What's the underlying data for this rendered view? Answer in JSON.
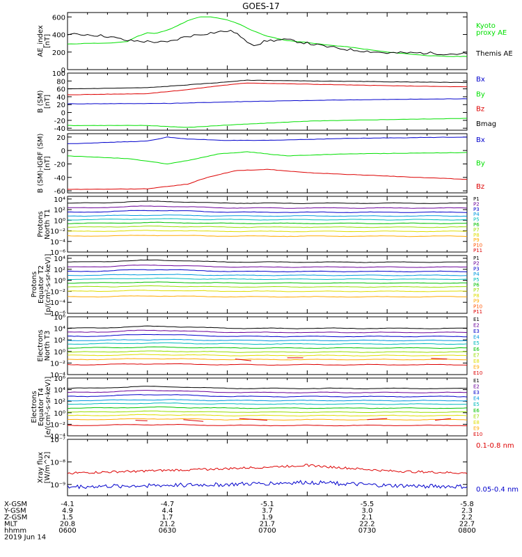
{
  "chart_data": {
    "type": "line",
    "title": "GOES-17",
    "panels": [
      {
        "id": "ae",
        "ylabel": [
          "AE_index",
          "[nT]"
        ],
        "yscale": "linear",
        "ylim": [
          0,
          650
        ],
        "ticks": [
          0,
          200,
          400,
          600
        ],
        "legend": [
          {
            "text": "Kyoto",
            "color": "#00e000"
          },
          {
            "text": "proxy AE",
            "color": "#00e000"
          },
          {
            "text": "Themis AE",
            "color": "#000000"
          }
        ],
        "series": [
          {
            "name": "Kyoto proxy AE",
            "color": "#00e000",
            "x": [
              0,
              0.05,
              0.1,
              0.15,
              0.17,
              0.2,
              0.22,
              0.25,
              0.28,
              0.3,
              0.33,
              0.36,
              0.4,
              0.43,
              0.46,
              0.5,
              0.55,
              0.6,
              0.65,
              0.7,
              0.75,
              0.8,
              0.85,
              0.9,
              0.95,
              1.0
            ],
            "y": [
              290,
              300,
              300,
              320,
              370,
              420,
              410,
              450,
              510,
              555,
              600,
              600,
              565,
              520,
              450,
              380,
              330,
              310,
              280,
              260,
              230,
              200,
              180,
              160,
              150,
              150
            ]
          },
          {
            "name": "Themis AE",
            "color": "#000000",
            "x": [
              0,
              0.05,
              0.1,
              0.15,
              0.2,
              0.25,
              0.3,
              0.33,
              0.36,
              0.4,
              0.42,
              0.44,
              0.47,
              0.5,
              0.55,
              0.6,
              0.65,
              0.7,
              0.75,
              0.8,
              0.85,
              0.9,
              0.95,
              1.0
            ],
            "y": [
              400,
              400,
              380,
              330,
              320,
              310,
              380,
              400,
              420,
              440,
              430,
              340,
              280,
              330,
              340,
              300,
              260,
              230,
              210,
              190,
              190,
              190,
              180,
              180
            ]
          }
        ]
      },
      {
        "id": "bsm",
        "ylabel": [
          "B (SM)",
          "[nT]"
        ],
        "yscale": "linear",
        "ylim": [
          -45,
          100
        ],
        "ticks": [
          -40,
          -20,
          0,
          20,
          40,
          60,
          80,
          100
        ],
        "legend": [
          {
            "text": "Bx",
            "color": "#0000cc"
          },
          {
            "text": "By",
            "color": "#00e000"
          },
          {
            "text": "Bz",
            "color": "#dd0000"
          },
          {
            "text": "Bmag",
            "color": "#000000"
          }
        ],
        "series": [
          {
            "name": "Bx",
            "color": "#0000cc",
            "x": [
              0,
              0.25,
              0.45,
              0.7,
              1.0
            ],
            "y": [
              22,
              23,
              28,
              32,
              35
            ]
          },
          {
            "name": "By",
            "color": "#00e000",
            "x": [
              0,
              0.2,
              0.3,
              0.4,
              0.6,
              0.8,
              1.0
            ],
            "y": [
              -33,
              -33,
              -38,
              -32,
              -22,
              -18,
              -15
            ]
          },
          {
            "name": "Bz",
            "color": "#dd0000",
            "x": [
              0,
              0.2,
              0.3,
              0.38,
              0.45,
              0.6,
              0.8,
              1.0
            ],
            "y": [
              45,
              48,
              58,
              68,
              75,
              72,
              68,
              65
            ]
          },
          {
            "name": "Bmag",
            "color": "#000000",
            "x": [
              0,
              0.2,
              0.3,
              0.38,
              0.45,
              0.6,
              0.8,
              1.0
            ],
            "y": [
              60,
              63,
              70,
              76,
              82,
              80,
              78,
              76
            ]
          }
        ]
      },
      {
        "id": "bigrf",
        "ylabel": [
          "B (SM)-IGRF (SM)",
          "[nT]"
        ],
        "yscale": "linear",
        "ylim": [
          -63,
          25
        ],
        "ticks": [
          -60,
          -40,
          -20,
          0,
          20
        ],
        "legend": [
          {
            "text": "Bx",
            "color": "#0000cc"
          },
          {
            "text": "By",
            "color": "#00e000"
          },
          {
            "text": "Bz",
            "color": "#dd0000"
          }
        ],
        "series": [
          {
            "name": "Bx",
            "color": "#0000cc",
            "x": [
              0,
              0.2,
              0.25,
              0.3,
              0.4,
              0.5,
              0.7,
              1.0
            ],
            "y": [
              10,
              14,
              20,
              17,
              15,
              15,
              18,
              20
            ]
          },
          {
            "name": "By",
            "color": "#00e000",
            "x": [
              0,
              0.15,
              0.25,
              0.3,
              0.38,
              0.45,
              0.55,
              0.7,
              1.0
            ],
            "y": [
              -8,
              -12,
              -20,
              -15,
              -5,
              -2,
              -8,
              -5,
              -3
            ]
          },
          {
            "name": "Bz",
            "color": "#dd0000",
            "x": [
              0,
              0.2,
              0.3,
              0.35,
              0.42,
              0.5,
              0.6,
              0.8,
              1.0
            ],
            "y": [
              -58,
              -57,
              -50,
              -40,
              -30,
              -28,
              -33,
              -38,
              -43
            ]
          }
        ]
      },
      {
        "id": "protons_t1",
        "ylabel": [
          "Protons",
          "North T1"
        ],
        "yscale": "log",
        "ylim": [
          -6,
          4.5
        ],
        "ticks": [
          -6,
          -4,
          -2,
          0,
          2,
          4
        ],
        "channels": [
          "P1",
          "P2",
          "P3",
          "P4",
          "P5",
          "P6",
          "P7",
          "P8",
          "P9",
          "P10",
          "P11"
        ],
        "channel_colors": [
          "#000000",
          "#6a0099",
          "#0000cc",
          "#0099dd",
          "#00bbbb",
          "#00c000",
          "#99dd00",
          "#dddd00",
          "#ffaa00",
          "#ff5500",
          "#dd0000"
        ],
        "levels": [
          3.2,
          2.3,
          1.5,
          0.8,
          0.1,
          -0.6,
          -1.3,
          -2.1,
          -3.0,
          null,
          null
        ]
      },
      {
        "id": "protons_t2",
        "ylabel": [
          "Protons",
          "Equator T2",
          "[p/(cm²-s-sr-keV)]"
        ],
        "yscale": "log",
        "ylim": [
          -6,
          4.5
        ],
        "ticks": [
          -6,
          -4,
          -2,
          0,
          2,
          4
        ],
        "channels": [
          "P1",
          "P2",
          "P3",
          "P4",
          "P5",
          "P6",
          "P7",
          "P8",
          "P9",
          "P10",
          "P11"
        ],
        "channel_colors": [
          "#000000",
          "#6a0099",
          "#0000cc",
          "#0099dd",
          "#00bbbb",
          "#00c000",
          "#99dd00",
          "#dddd00",
          "#ffaa00",
          "#ff5500",
          "#dd0000"
        ],
        "levels": [
          3.3,
          2.4,
          1.6,
          0.9,
          0.2,
          -0.5,
          -1.2,
          -2.0,
          -3.0,
          null,
          null
        ]
      },
      {
        "id": "electrons_t3",
        "ylabel": [
          "Electrons",
          "North T3"
        ],
        "yscale": "log",
        "ylim": [
          -4,
          6
        ],
        "ticks": [
          -4,
          -2,
          0,
          2,
          4,
          6
        ],
        "channels": [
          "E1",
          "E2",
          "E3",
          "E4",
          "E5",
          "E6",
          "E7",
          "E8",
          "E9",
          "E10"
        ],
        "channel_colors": [
          "#000000",
          "#6a0099",
          "#0000cc",
          "#0099dd",
          "#00bbbb",
          "#00c000",
          "#99dd00",
          "#dddd00",
          "#ffaa00",
          "#dd0000"
        ],
        "levels": [
          4.0,
          3.3,
          2.6,
          1.9,
          1.3,
          0.6,
          -0.1,
          -0.7,
          -1.4,
          -2.3
        ]
      },
      {
        "id": "electrons_t4",
        "ylabel": [
          "Electrons",
          "Equator T4",
          "[e/(cm²-s-sr-keV)]"
        ],
        "yscale": "log",
        "ylim": [
          -4,
          6
        ],
        "ticks": [
          -4,
          -2,
          0,
          2,
          4,
          6
        ],
        "channels": [
          "E1",
          "E2",
          "E3",
          "E4",
          "E5",
          "E6",
          "E7",
          "E8",
          "E9",
          "E10"
        ],
        "channel_colors": [
          "#000000",
          "#6a0099",
          "#0000cc",
          "#0099dd",
          "#00bbbb",
          "#00c000",
          "#99dd00",
          "#dddd00",
          "#ffaa00",
          "#dd0000"
        ],
        "levels": [
          4.2,
          3.5,
          2.8,
          2.1,
          1.5,
          0.8,
          0.1,
          -0.5,
          -1.2,
          -2.2
        ]
      },
      {
        "id": "xray",
        "ylabel": [
          "Xray flux",
          "[W/m^2]"
        ],
        "yscale": "log",
        "ylim": [
          -9.5,
          -7
        ],
        "ticks": [
          -9,
          -8,
          -7
        ],
        "legend": [
          {
            "text": "0.1-0.8 nm",
            "color": "#dd0000"
          },
          {
            "text": "0.05-0.4 nm",
            "color": "#0000cc"
          }
        ],
        "series": [
          {
            "name": "0.1-0.8 nm",
            "color": "#dd0000",
            "base": -8.5,
            "trend": [
              0,
              0.1,
              0.2,
              0.35,
              0.1,
              0
            ],
            "noise": 0.05
          },
          {
            "name": "0.05-0.4 nm",
            "color": "#0000cc",
            "base": -9.1,
            "trend": [
              0,
              0.05,
              0.1,
              0.2,
              0.05,
              0
            ],
            "noise": 0.09
          }
        ]
      }
    ],
    "xaxis": {
      "rows": [
        {
          "label": "X-GSM",
          "values": [
            "-4.1",
            "-4.7",
            "-5.1",
            "-5.5",
            "-5.8"
          ]
        },
        {
          "label": "Y-GSM",
          "values": [
            "4.9",
            "4.4",
            "3.7",
            "3.0",
            "2.3"
          ]
        },
        {
          "label": "Z-GSM",
          "values": [
            "1.5",
            "1.7",
            "1.9",
            "2.1",
            "2.2"
          ]
        },
        {
          "label": "MLT",
          "values": [
            "20.8",
            "21.2",
            "21.7",
            "22.2",
            "22.7"
          ]
        },
        {
          "label": "hhmm",
          "values": [
            "0600",
            "0630",
            "0700",
            "0730",
            "0800"
          ]
        }
      ],
      "date": "2019 Jun 14"
    }
  }
}
